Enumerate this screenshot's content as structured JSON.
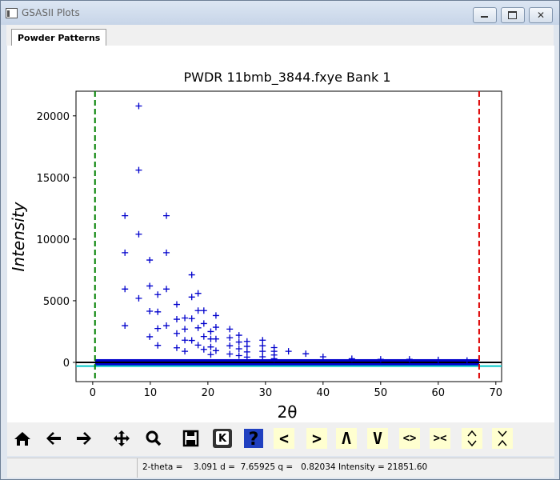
{
  "window": {
    "title": "GSASII Plots"
  },
  "tab": {
    "label": "Powder Patterns"
  },
  "chart_data": {
    "type": "scatter",
    "title": "PWDR 11bmb_3844.fxye Bank 1",
    "x_label": "2θ",
    "y_label": "Intensity",
    "color": "#0000cc",
    "x": [
      5.6,
      5.6,
      5.6,
      5.6,
      8.0,
      8.0,
      8.0,
      8.0,
      9.9,
      9.9,
      9.9,
      9.9,
      11.3,
      11.3,
      11.3,
      11.3,
      12.8,
      12.8,
      12.8,
      12.8,
      14.6,
      14.6,
      14.6,
      14.6,
      16.0,
      16.0,
      16.0,
      16.0,
      17.2,
      17.2,
      17.2,
      17.2,
      18.3,
      18.3,
      18.3,
      18.3,
      19.3,
      19.3,
      19.3,
      19.3,
      20.5,
      20.5,
      20.5,
      20.5,
      21.4,
      21.4,
      21.4,
      21.4,
      23.8,
      23.8,
      23.8,
      23.8,
      25.4,
      25.4,
      25.4,
      25.4,
      26.8,
      26.8,
      26.8,
      26.8,
      29.5,
      29.5,
      29.5,
      29.5,
      31.5,
      31.5,
      31.5,
      31.5,
      34,
      37,
      40,
      45,
      50,
      55,
      60,
      65
    ],
    "values": [
      11900,
      8900,
      5950,
      2980,
      20800,
      15600,
      10400,
      5200,
      8300,
      6200,
      4150,
      2080,
      5500,
      4100,
      2750,
      1380,
      11900,
      8900,
      5950,
      2980,
      4700,
      3500,
      2350,
      1180,
      3600,
      2700,
      1800,
      900,
      7100,
      5300,
      3550,
      1780,
      5600,
      4200,
      2800,
      1400,
      4200,
      3150,
      2100,
      1050,
      2500,
      1900,
      1250,
      630,
      3800,
      2850,
      1900,
      950,
      2700,
      2000,
      1350,
      680,
      2200,
      1650,
      1100,
      550,
      1700,
      1300,
      850,
      430,
      1800,
      1350,
      900,
      450,
      1200,
      900,
      600,
      300,
      900,
      700,
      450,
      300,
      250,
      250,
      200,
      150
    ],
    "xlim": [
      -2.9,
      71
    ],
    "ylim": [
      -1560,
      22000
    ],
    "xticks": [
      0,
      10,
      20,
      30,
      40,
      50,
      60,
      70
    ],
    "yticks": [
      0,
      5000,
      10000,
      15000,
      20000
    ],
    "vlines": [
      {
        "value": 0.4,
        "color": "#008000"
      },
      {
        "value": 67.1,
        "color": "#dd0000"
      }
    ],
    "hlines": [
      {
        "value": -300,
        "color": "#00c8c8"
      },
      {
        "value": 0,
        "color": "#000000"
      }
    ]
  },
  "toolbar": {
    "buttons": [
      "<",
      ">",
      "Λ",
      "V",
      "<>",
      "><"
    ]
  },
  "status": {
    "text": "2-theta =    3.091 d =  7.65925 q =   0.82034 Intensity = 21851.60"
  }
}
